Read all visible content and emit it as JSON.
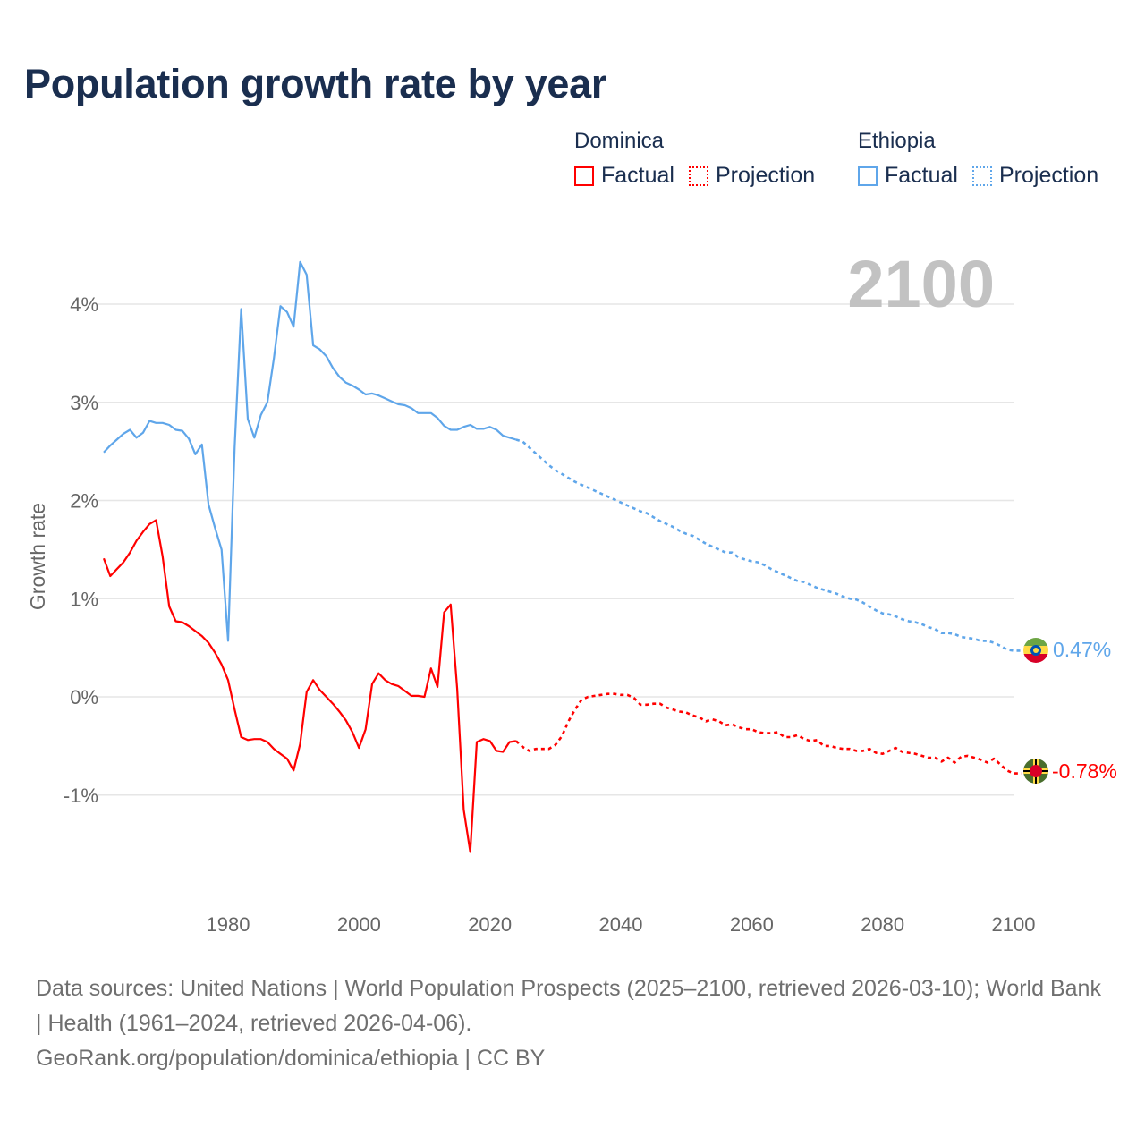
{
  "title": "Population growth rate by year",
  "legend": {
    "groups": [
      {
        "name": "Dominica",
        "factual": "Factual",
        "projection": "Projection",
        "color": "#ff0000"
      },
      {
        "name": "Ethiopia",
        "factual": "Factual",
        "projection": "Projection",
        "color": "#5fa6ea"
      }
    ]
  },
  "current_year": "2100",
  "end_labels": {
    "ethiopia": "0.47%",
    "dominica": "-0.78%"
  },
  "footer": {
    "sources": "Data sources: United Nations | World Population Prospects (2025–2100, retrieved 2026-03-10); World Bank | Health (1961–2024, retrieved 2026-04-06).",
    "credit": "GeoRank.org/population/dominica/ethiopia | CC BY"
  },
  "chart_data": {
    "type": "line",
    "title": "Population growth rate by year",
    "xlabel": "",
    "ylabel": "Growth rate",
    "xlim": [
      1961,
      2100
    ],
    "ylim": [
      -2,
      4.5
    ],
    "x_ticks": [
      1980,
      2000,
      2020,
      2040,
      2060,
      2080,
      2100
    ],
    "x_tick_labels": [
      "1980",
      "2000",
      "2020",
      "2040",
      "2060",
      "2080",
      "2100"
    ],
    "y_ticks": [
      -1,
      0,
      1,
      2,
      3,
      4
    ],
    "y_tick_labels": [
      "-1%",
      "0%",
      "1%",
      "2%",
      "3%",
      "4%"
    ],
    "grid": true,
    "legend_position": "top-right",
    "series": [
      {
        "name": "Ethiopia",
        "color": "#5fa6ea",
        "factual": {
          "start_year": 1961,
          "values": [
            2.49,
            2.56,
            2.62,
            2.68,
            2.72,
            2.64,
            2.69,
            2.81,
            2.79,
            2.79,
            2.77,
            2.72,
            2.71,
            2.63,
            2.47,
            2.57,
            1.96,
            1.72,
            1.5,
            0.57,
            2.54,
            3.95,
            2.83,
            2.64,
            2.87,
            3.0,
            3.45,
            3.98,
            3.92,
            3.77,
            4.43,
            4.3,
            3.58,
            3.54,
            3.47,
            3.35,
            3.26,
            3.2,
            3.17,
            3.13,
            3.08,
            3.09,
            3.07,
            3.04,
            3.01,
            2.98,
            2.97,
            2.94,
            2.89,
            2.89,
            2.89,
            2.84,
            2.76,
            2.72,
            2.72,
            2.75,
            2.77,
            2.73,
            2.73,
            2.75,
            2.72,
            2.66,
            2.64,
            2.62
          ]
        },
        "projection": {
          "start_year": 2024,
          "values": [
            2.62,
            2.6,
            2.54,
            2.48,
            2.42,
            2.36,
            2.31,
            2.27,
            2.23,
            2.19,
            2.16,
            2.13,
            2.1,
            2.07,
            2.04,
            2.01,
            1.98,
            1.95,
            1.92,
            1.89,
            1.87,
            1.83,
            1.79,
            1.76,
            1.73,
            1.69,
            1.66,
            1.64,
            1.6,
            1.56,
            1.53,
            1.5,
            1.47,
            1.47,
            1.42,
            1.4,
            1.38,
            1.37,
            1.34,
            1.3,
            1.27,
            1.24,
            1.21,
            1.18,
            1.17,
            1.14,
            1.11,
            1.09,
            1.07,
            1.05,
            1.02,
            1.0,
            0.99,
            0.96,
            0.92,
            0.88,
            0.85,
            0.84,
            0.82,
            0.79,
            0.77,
            0.76,
            0.74,
            0.71,
            0.69,
            0.65,
            0.65,
            0.64,
            0.61,
            0.6,
            0.59,
            0.57,
            0.57,
            0.55,
            0.52,
            0.48,
            0.47
          ]
        }
      },
      {
        "name": "Dominica",
        "color": "#ff0000",
        "factual": {
          "start_year": 1961,
          "values": [
            1.41,
            1.23,
            1.3,
            1.37,
            1.47,
            1.59,
            1.68,
            1.76,
            1.8,
            1.43,
            0.92,
            0.77,
            0.76,
            0.72,
            0.67,
            0.62,
            0.55,
            0.45,
            0.33,
            0.17,
            -0.13,
            -0.41,
            -0.44,
            -0.43,
            -0.43,
            -0.46,
            -0.53,
            -0.58,
            -0.63,
            -0.75,
            -0.48,
            0.05,
            0.17,
            0.07,
            0.0,
            -0.07,
            -0.15,
            -0.24,
            -0.36,
            -0.52,
            -0.33,
            0.13,
            0.24,
            0.17,
            0.13,
            0.11,
            0.06,
            0.01,
            0.01,
            0.0,
            0.29,
            0.1,
            0.86,
            0.94,
            0.08,
            -1.15,
            -1.58,
            -0.46,
            -0.43,
            -0.45,
            -0.55,
            -0.56,
            -0.46,
            -0.45
          ]
        },
        "projection": {
          "start_year": 2024,
          "values": [
            -0.45,
            -0.51,
            -0.55,
            -0.53,
            -0.53,
            -0.53,
            -0.49,
            -0.4,
            -0.25,
            -0.13,
            -0.03,
            0.0,
            0.01,
            0.02,
            0.03,
            0.03,
            0.02,
            0.02,
            -0.01,
            -0.08,
            -0.08,
            -0.07,
            -0.07,
            -0.11,
            -0.13,
            -0.15,
            -0.16,
            -0.19,
            -0.21,
            -0.25,
            -0.23,
            -0.25,
            -0.29,
            -0.28,
            -0.31,
            -0.33,
            -0.33,
            -0.36,
            -0.37,
            -0.37,
            -0.36,
            -0.41,
            -0.41,
            -0.39,
            -0.43,
            -0.45,
            -0.44,
            -0.5,
            -0.5,
            -0.52,
            -0.53,
            -0.53,
            -0.55,
            -0.55,
            -0.53,
            -0.57,
            -0.58,
            -0.55,
            -0.52,
            -0.56,
            -0.57,
            -0.58,
            -0.6,
            -0.62,
            -0.62,
            -0.66,
            -0.62,
            -0.67,
            -0.61,
            -0.6,
            -0.62,
            -0.64,
            -0.67,
            -0.63,
            -0.69,
            -0.75,
            -0.78
          ]
        }
      }
    ]
  }
}
